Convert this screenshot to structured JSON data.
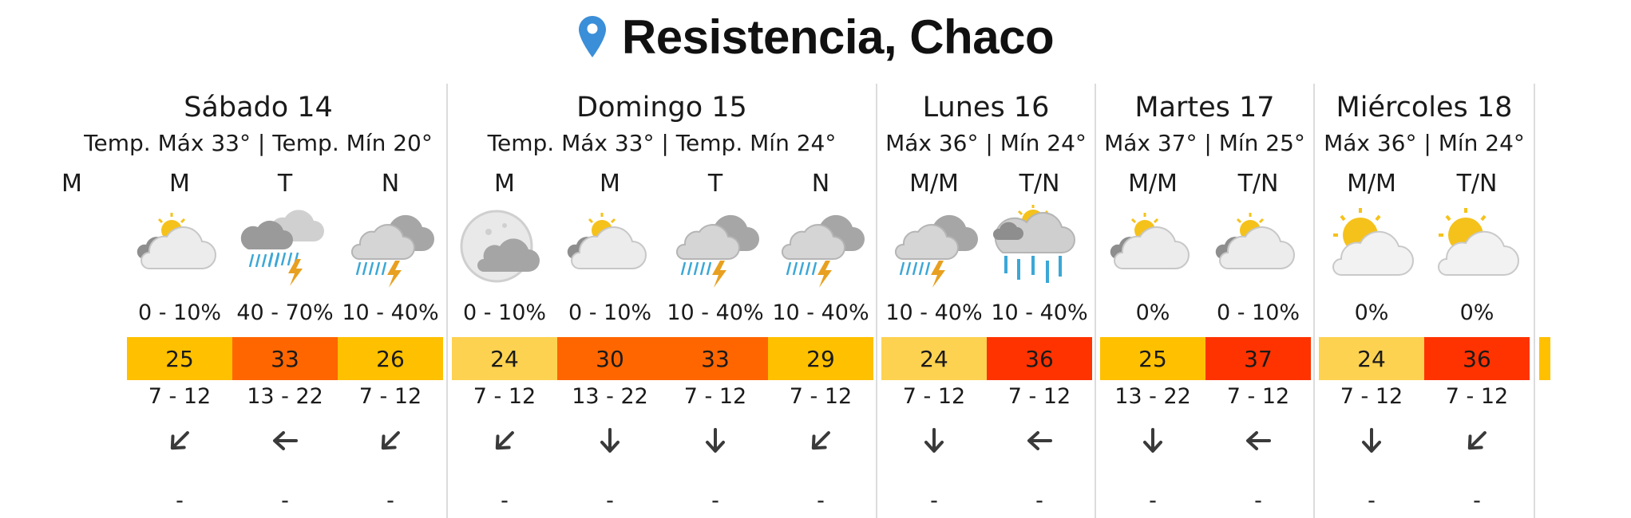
{
  "header": {
    "location": "Resistencia, Chaco",
    "icon": "map-pin-icon",
    "icon_color": "#3B8ED8"
  },
  "colors": {
    "temp_scale": {
      "24": "#FDD251",
      "25": "#FFC000",
      "26": "#FFC000",
      "29": "#FFC000",
      "30": "#FF6600",
      "33": "#FF6600",
      "36": "#FF3300",
      "37": "#FF3300"
    }
  },
  "days": [
    {
      "name": "Sábado 14",
      "temps": "Temp. Máx 33° | Temp. Mín 20°",
      "columns": [
        {
          "period": "M",
          "icon": "",
          "rain": "",
          "temp": "",
          "temp_color": "",
          "wind": "",
          "wind_dir": "",
          "gust": ""
        },
        {
          "period": "M",
          "icon": "partly-cloudy-icon",
          "rain": "0 - 10%",
          "temp": "25",
          "temp_color": "#FFC000",
          "wind": "7 - 12",
          "wind_dir": "down-left",
          "gust": "-"
        },
        {
          "period": "T",
          "icon": "thunderstorm-heavy-icon",
          "rain": "40 - 70%",
          "temp": "33",
          "temp_color": "#FF6600",
          "wind": "13 - 22",
          "wind_dir": "left",
          "gust": "-"
        },
        {
          "period": "N",
          "icon": "thunderstorm-icon",
          "rain": "10 - 40%",
          "temp": "26",
          "temp_color": "#FFC000",
          "wind": "7 - 12",
          "wind_dir": "down-left",
          "gust": "-"
        }
      ]
    },
    {
      "name": "Domingo 15",
      "temps": "Temp. Máx 33° | Temp. Mín 24°",
      "columns": [
        {
          "period": "M",
          "icon": "moon-cloudy-icon",
          "rain": "0 - 10%",
          "temp": "24",
          "temp_color": "#FDD251",
          "wind": "7 - 12",
          "wind_dir": "down-left",
          "gust": "-"
        },
        {
          "period": "M",
          "icon": "partly-cloudy-icon",
          "rain": "0 - 10%",
          "temp": "30",
          "temp_color": "#FF6600",
          "wind": "13 - 22",
          "wind_dir": "down",
          "gust": "-"
        },
        {
          "period": "T",
          "icon": "thunderstorm-icon",
          "rain": "10 - 40%",
          "temp": "33",
          "temp_color": "#FF6600",
          "wind": "7 - 12",
          "wind_dir": "down",
          "gust": "-"
        },
        {
          "period": "N",
          "icon": "thunderstorm-icon",
          "rain": "10 - 40%",
          "temp": "29",
          "temp_color": "#FFC000",
          "wind": "7 - 12",
          "wind_dir": "down-left",
          "gust": "-"
        }
      ]
    },
    {
      "name": "Lunes 16",
      "temps": "Máx 36° | Mín 24°",
      "columns": [
        {
          "period": "M/M",
          "icon": "thunderstorm-icon",
          "rain": "10 - 40%",
          "temp": "24",
          "temp_color": "#FDD251",
          "wind": "7 - 12",
          "wind_dir": "down",
          "gust": "-"
        },
        {
          "period": "T/N",
          "icon": "sun-rain-icon",
          "rain": "10 - 40%",
          "temp": "36",
          "temp_color": "#FF3300",
          "wind": "7 - 12",
          "wind_dir": "left",
          "gust": "-"
        }
      ]
    },
    {
      "name": "Martes 17",
      "temps": "Máx 37° | Mín 25°",
      "columns": [
        {
          "period": "M/M",
          "icon": "partly-cloudy-icon",
          "rain": "0%",
          "temp": "25",
          "temp_color": "#FFC000",
          "wind": "13 - 22",
          "wind_dir": "down",
          "gust": "-"
        },
        {
          "period": "T/N",
          "icon": "partly-cloudy-icon",
          "rain": "0 - 10%",
          "temp": "37",
          "temp_color": "#FF3300",
          "wind": "7 - 12",
          "wind_dir": "left",
          "gust": "-"
        }
      ]
    },
    {
      "name": "Miércoles 18",
      "temps": "Máx 36° | Mín 24°",
      "columns": [
        {
          "period": "M/M",
          "icon": "sun-cloud-icon",
          "rain": "0%",
          "temp": "24",
          "temp_color": "#FDD251",
          "wind": "7 - 12",
          "wind_dir": "down",
          "gust": "-"
        },
        {
          "period": "T/N",
          "icon": "sun-cloud-icon",
          "rain": "0%",
          "temp": "36",
          "temp_color": "#FF3300",
          "wind": "7 - 12",
          "wind_dir": "down-left",
          "gust": "-"
        }
      ]
    }
  ]
}
